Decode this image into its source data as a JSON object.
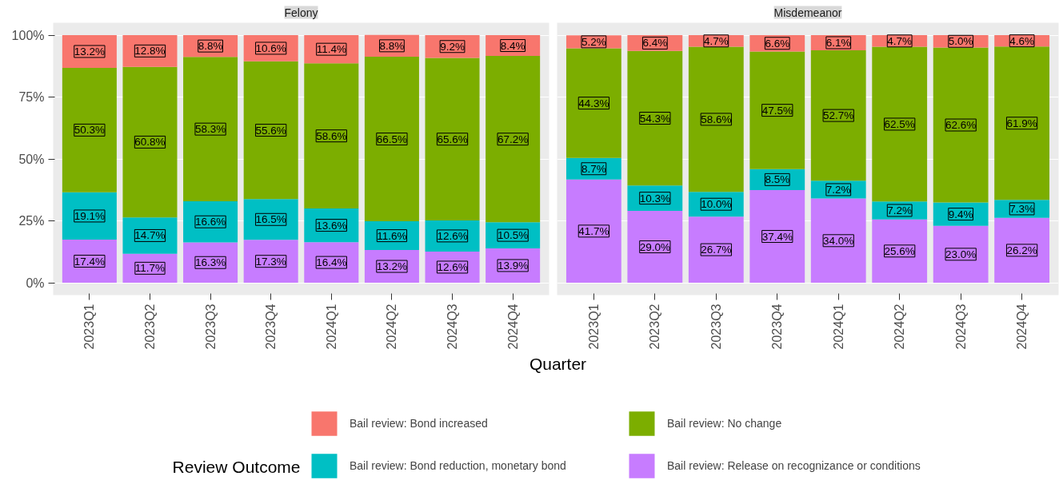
{
  "chart_data": [
    {
      "type": "bar",
      "title": "Felony",
      "xlabel": "Quarter",
      "legend_title": "Review Outcome",
      "legend": "bottom",
      "stacked": true,
      "grid": "y",
      "categories": [
        "2023Q1",
        "2023Q2",
        "2023Q3",
        "2023Q4",
        "2024Q1",
        "2024Q2",
        "2024Q3",
        "2024Q4"
      ],
      "ylim": [
        -5,
        105
      ],
      "yticks": [
        {
          "value": 0,
          "label": "0%"
        },
        {
          "value": 25,
          "label": "25%"
        },
        {
          "value": 50,
          "label": "50%"
        },
        {
          "value": 75,
          "label": "75%"
        },
        {
          "value": 100,
          "label": "100%"
        }
      ],
      "series": [
        {
          "name": "Bail review: Release on recognizance or conditions",
          "color": "#c77cff",
          "values": [
            17.4,
            11.7,
            16.3,
            17.3,
            16.4,
            13.2,
            12.6,
            13.9
          ],
          "value_labels": [
            "17.4%",
            "11.7%",
            "16.3%",
            "17.3%",
            "16.4%",
            "13.2%",
            "12.6%",
            "13.9%"
          ]
        },
        {
          "name": "Bail review: Bond reduction, monetary bond",
          "color": "#00bfc4",
          "values": [
            19.1,
            14.7,
            16.6,
            16.5,
            13.6,
            11.6,
            12.6,
            10.5
          ],
          "value_labels": [
            "19.1%",
            "14.7%",
            "16.6%",
            "16.5%",
            "13.6%",
            "11.6%",
            "12.6%",
            "10.5%"
          ]
        },
        {
          "name": "Bail review: No change",
          "color": "#7cae00",
          "values": [
            50.3,
            60.8,
            58.3,
            55.6,
            58.6,
            66.5,
            65.6,
            67.2
          ],
          "value_labels": [
            "50.3%",
            "60.8%",
            "58.3%",
            "55.6%",
            "58.6%",
            "66.5%",
            "65.6%",
            "67.2%"
          ]
        },
        {
          "name": "Bail review: Bond increased",
          "color": "#f8766d",
          "values": [
            13.2,
            12.8,
            8.8,
            10.6,
            11.4,
            8.8,
            9.2,
            8.4
          ],
          "value_labels": [
            "13.2%",
            "12.8%",
            "8.8%",
            "10.6%",
            "11.4%",
            "8.8%",
            "9.2%",
            "8.4%"
          ]
        }
      ]
    },
    {
      "type": "bar",
      "title": "Misdemeanor",
      "stacked": true,
      "grid": "y",
      "tick_labels": "x",
      "categories": [
        "2023Q1",
        "2023Q2",
        "2023Q3",
        "2023Q4",
        "2024Q1",
        "2024Q2",
        "2024Q3",
        "2024Q4"
      ],
      "ylim": [
        -5,
        105
      ],
      "yticks": [
        0,
        25,
        50,
        75,
        100
      ],
      "series": [
        {
          "color": "#c77cff",
          "values": [
            41.7,
            29.0,
            26.7,
            37.4,
            34.0,
            25.6,
            23.0,
            26.2
          ],
          "value_labels": [
            "41.7%",
            "29.0%",
            "26.7%",
            "37.4%",
            "34.0%",
            "25.6%",
            "23.0%",
            "26.2%"
          ]
        },
        {
          "color": "#00bfc4",
          "values": [
            8.7,
            10.3,
            10.0,
            8.5,
            7.2,
            7.2,
            9.4,
            7.3
          ],
          "value_labels": [
            "8.7%",
            "10.3%",
            "10.0%",
            "8.5%",
            "7.2%",
            "7.2%",
            "9.4%",
            "7.3%"
          ]
        },
        {
          "color": "#7cae00",
          "values": [
            44.3,
            54.3,
            58.6,
            47.5,
            52.7,
            62.5,
            62.6,
            61.9
          ],
          "value_labels": [
            "44.3%",
            "54.3%",
            "58.6%",
            "47.5%",
            "52.7%",
            "62.5%",
            "62.6%",
            "61.9%"
          ]
        },
        {
          "color": "#f8766d",
          "values": [
            5.2,
            6.4,
            4.7,
            6.6,
            6.1,
            4.7,
            5.0,
            4.6
          ],
          "value_labels": [
            "5.2%",
            "6.4%",
            "4.7%",
            "6.6%",
            "6.1%",
            "4.7%",
            "5.0%",
            "4.6%"
          ]
        }
      ]
    }
  ]
}
